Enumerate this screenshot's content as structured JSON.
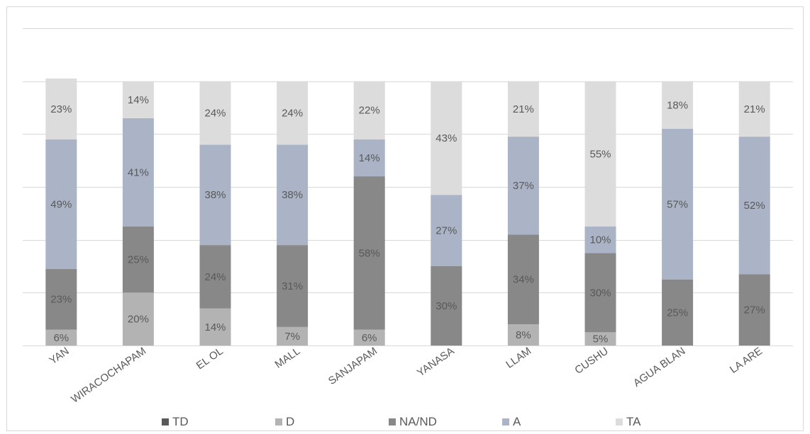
{
  "chart_data": {
    "type": "bar",
    "stacked": true,
    "title": "",
    "xlabel": "",
    "ylabel": "",
    "ylim": [
      0,
      1.2
    ],
    "grid": true,
    "legend_position": "bottom",
    "categories": [
      "YAN",
      "WIRACOCHAPAM",
      "EL OL",
      "MALL",
      "SANJAPAM",
      "YANASA",
      "LLAM",
      "CUSHU",
      "AGUA BLAN",
      "LA ARE"
    ],
    "series": [
      {
        "name": "TD",
        "color": "#595959",
        "values": [
          0,
          0,
          0,
          0,
          0,
          0,
          0,
          0,
          0,
          0
        ],
        "labels": [
          "",
          "",
          "",
          "",
          "",
          "",
          "",
          "",
          "",
          ""
        ]
      },
      {
        "name": "D",
        "color": "#b3b3b3",
        "values": [
          0.06,
          0.2,
          0.14,
          0.07,
          0.06,
          0,
          0.08,
          0.05,
          0,
          0
        ],
        "labels": [
          "6%",
          "20%",
          "14%",
          "7%",
          "6%",
          "",
          "8%",
          "5%",
          "",
          ""
        ]
      },
      {
        "name": "NA/ND",
        "color": "#888888",
        "values": [
          0.23,
          0.25,
          0.24,
          0.31,
          0.58,
          0.3,
          0.34,
          0.3,
          0.25,
          0.27
        ],
        "labels": [
          "23%",
          "25%",
          "24%",
          "31%",
          "58%",
          "30%",
          "34%",
          "30%",
          "25%",
          "27%"
        ]
      },
      {
        "name": "A",
        "color": "#aab4c6",
        "values": [
          0.49,
          0.41,
          0.38,
          0.38,
          0.14,
          0.27,
          0.37,
          0.1,
          0.57,
          0.52
        ],
        "labels": [
          "49%",
          "41%",
          "38%",
          "38%",
          "14%",
          "27%",
          "37%",
          "10%",
          "57%",
          "52%"
        ]
      },
      {
        "name": "TA",
        "color": "#dcdcdc",
        "values": [
          0.23,
          0.14,
          0.24,
          0.24,
          0.22,
          0.43,
          0.21,
          0.55,
          0.18,
          0.21
        ],
        "labels": [
          "23%",
          "14%",
          "24%",
          "24%",
          "22%",
          "43%",
          "21%",
          "55%",
          "18%",
          "21%"
        ]
      }
    ]
  }
}
